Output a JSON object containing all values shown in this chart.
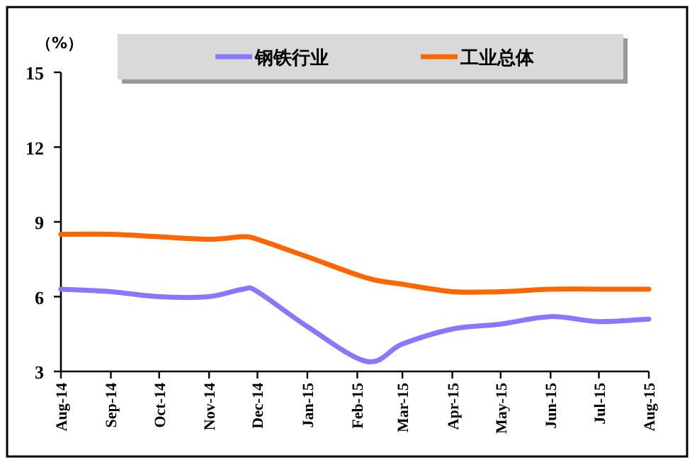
{
  "chart_data": {
    "type": "line",
    "ylabel": "（%）",
    "x": [
      "2014-08",
      "2014-09",
      "2014-10",
      "2014-11",
      "2014-11-22",
      "2014-12",
      "2015-01",
      "2015-02-07",
      "2015-03",
      "2015-04",
      "2015-05",
      "2015-06",
      "2015-07",
      "2015-08"
    ],
    "series": [
      {
        "name": "钢铁行业",
        "color": "#8877ff",
        "values": [
          6.3,
          6.2,
          6.0,
          6.0,
          6.3,
          6.2,
          4.8,
          3.4,
          4.1,
          4.7,
          4.9,
          5.2,
          5.0,
          5.1
        ]
      },
      {
        "name": "工业总体",
        "color": "#ff6600",
        "values": [
          8.5,
          8.5,
          8.4,
          8.3,
          8.4,
          8.3,
          7.6,
          6.75,
          6.5,
          6.2,
          6.2,
          6.3,
          6.3,
          6.3
        ]
      }
    ],
    "xlim": [
      "2014-08",
      "2015-08"
    ],
    "xticks": [
      {
        "value": "2014-08",
        "label": "Aug-14"
      },
      {
        "value": "2014-09",
        "label": "Sep-14"
      },
      {
        "value": "2014-10",
        "label": "Oct-14"
      },
      {
        "value": "2014-11",
        "label": "Nov-14"
      },
      {
        "value": "2014-12",
        "label": "Dec-14"
      },
      {
        "value": "2015-01",
        "label": "Jan-15"
      },
      {
        "value": "2015-02",
        "label": "Feb-15"
      },
      {
        "value": "2015-03",
        "label": "Mar-15"
      },
      {
        "value": "2015-04",
        "label": "Apr-15"
      },
      {
        "value": "2015-05",
        "label": "May-15"
      },
      {
        "value": "2015-06",
        "label": "Jun-15"
      },
      {
        "value": "2015-07",
        "label": "Jul-15"
      },
      {
        "value": "2015-08",
        "label": "Aug-15"
      }
    ],
    "ylim": [
      3,
      15
    ],
    "yticks": [
      3,
      6,
      9,
      12,
      15
    ],
    "grid": false,
    "legend": "top",
    "marker": "none",
    "line_style": "solid"
  }
}
